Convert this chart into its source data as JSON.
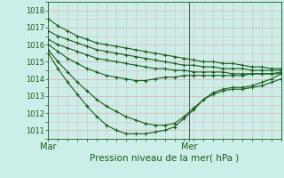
{
  "xlabel": "Pression niveau de la mer( hPa )",
  "ylim": [
    1010.5,
    1018.3
  ],
  "xlim": [
    0,
    48
  ],
  "yticks": [
    1011,
    1012,
    1013,
    1014,
    1015,
    1016,
    1017,
    1018
  ],
  "xticks": [
    0,
    29
  ],
  "xticklabels": [
    "Mar",
    "Mer"
  ],
  "background_color": "#cceee8",
  "grid_color": "#ddb8b8",
  "line_color": "#1a5c1a",
  "marker": "+",
  "markersize": 3.5,
  "linewidth": 0.8,
  "figsize": [
    3.2,
    2.0
  ],
  "dpi": 100,
  "ver_line_x": 29,
  "series": [
    {
      "x": [
        0,
        2,
        4,
        6,
        8,
        10,
        12,
        14,
        16,
        18,
        20,
        22,
        24,
        26,
        28,
        30,
        32,
        34,
        36,
        38,
        40,
        42,
        44,
        46,
        48
      ],
      "y": [
        1017.5,
        1017.1,
        1016.8,
        1016.5,
        1016.3,
        1016.1,
        1016.0,
        1015.9,
        1015.8,
        1015.7,
        1015.6,
        1015.5,
        1015.4,
        1015.3,
        1015.2,
        1015.1,
        1015.0,
        1015.0,
        1014.9,
        1014.9,
        1014.8,
        1014.7,
        1014.7,
        1014.6,
        1014.6
      ]
    },
    {
      "x": [
        0,
        2,
        4,
        6,
        8,
        10,
        12,
        14,
        16,
        18,
        20,
        22,
        24,
        26,
        28,
        30,
        32,
        34,
        36,
        38,
        40,
        42,
        44,
        46,
        48
      ],
      "y": [
        1016.8,
        1016.5,
        1016.3,
        1016.1,
        1015.9,
        1015.7,
        1015.6,
        1015.5,
        1015.4,
        1015.3,
        1015.2,
        1015.1,
        1015.0,
        1014.9,
        1014.8,
        1014.8,
        1014.7,
        1014.7,
        1014.6,
        1014.6,
        1014.6,
        1014.5,
        1014.5,
        1014.5,
        1014.5
      ]
    },
    {
      "x": [
        0,
        2,
        4,
        6,
        8,
        10,
        12,
        14,
        16,
        18,
        20,
        22,
        24,
        26,
        28,
        30,
        32,
        34,
        36,
        38,
        40,
        42,
        44,
        46,
        48
      ],
      "y": [
        1016.3,
        1016.0,
        1015.8,
        1015.6,
        1015.4,
        1015.2,
        1015.1,
        1015.0,
        1014.9,
        1014.8,
        1014.7,
        1014.6,
        1014.6,
        1014.5,
        1014.5,
        1014.4,
        1014.4,
        1014.4,
        1014.4,
        1014.3,
        1014.3,
        1014.3,
        1014.3,
        1014.3,
        1014.3
      ]
    },
    {
      "x": [
        0,
        2,
        4,
        6,
        8,
        10,
        12,
        14,
        16,
        18,
        20,
        22,
        24,
        26,
        28,
        30,
        32,
        34,
        36,
        38,
        40,
        42,
        44,
        46,
        48
      ],
      "y": [
        1016.0,
        1015.6,
        1015.2,
        1014.9,
        1014.6,
        1014.4,
        1014.2,
        1014.1,
        1014.0,
        1013.9,
        1013.9,
        1014.0,
        1014.1,
        1014.1,
        1014.2,
        1014.2,
        1014.2,
        1014.2,
        1014.2,
        1014.2,
        1014.2,
        1014.3,
        1014.3,
        1014.3,
        1014.4
      ]
    },
    {
      "x": [
        0,
        2,
        4,
        6,
        8,
        10,
        12,
        14,
        16,
        18,
        20,
        22,
        24,
        26,
        28,
        30,
        32,
        34,
        36,
        38,
        40,
        42,
        44,
        46,
        48
      ],
      "y": [
        1015.7,
        1015.0,
        1014.4,
        1013.8,
        1013.3,
        1012.8,
        1012.4,
        1012.1,
        1011.8,
        1011.6,
        1011.4,
        1011.3,
        1011.3,
        1011.4,
        1011.8,
        1012.3,
        1012.8,
        1013.1,
        1013.3,
        1013.4,
        1013.4,
        1013.5,
        1013.6,
        1013.8,
        1014.0
      ]
    },
    {
      "x": [
        0,
        2,
        4,
        6,
        8,
        10,
        12,
        14,
        16,
        18,
        20,
        22,
        24,
        26,
        28,
        30,
        32,
        34,
        36,
        38,
        40,
        42,
        44,
        46,
        48
      ],
      "y": [
        1015.5,
        1014.6,
        1013.8,
        1013.1,
        1012.4,
        1011.8,
        1011.3,
        1011.0,
        1010.8,
        1010.8,
        1010.8,
        1010.9,
        1011.0,
        1011.2,
        1011.7,
        1012.2,
        1012.8,
        1013.2,
        1013.4,
        1013.5,
        1013.5,
        1013.6,
        1013.8,
        1014.0,
        1014.3
      ]
    }
  ]
}
